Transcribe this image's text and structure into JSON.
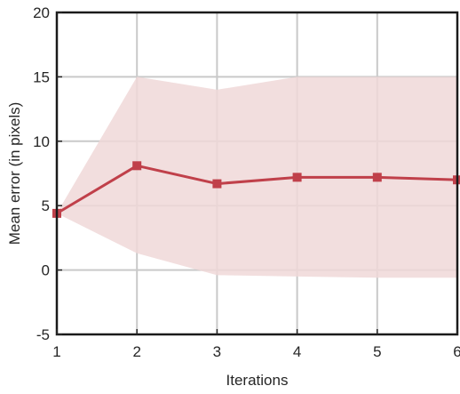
{
  "chart_data": {
    "type": "line",
    "title": "",
    "xlabel": "Iterations",
    "ylabel": "Mean error (in pixels)",
    "xlim": [
      1,
      6
    ],
    "ylim": [
      -5,
      20
    ],
    "x_ticks": [
      "1",
      "2",
      "3",
      "4",
      "5",
      "6"
    ],
    "y_ticks": [
      "-5",
      "0",
      "5",
      "10",
      "15",
      "20"
    ],
    "grid": true,
    "legend": "none",
    "x": [
      1,
      2,
      3,
      4,
      5,
      6
    ],
    "series": [
      {
        "values": [
          4.4,
          8.1,
          6.7,
          7.2,
          7.2,
          7.0
        ],
        "band_upper": [
          4.4,
          15.0,
          14.0,
          15.0,
          15.0,
          15.0
        ],
        "band_lower": [
          4.4,
          1.3,
          -0.4,
          -0.5,
          -0.6,
          -0.6
        ],
        "color": "#c0404a",
        "band_color": "#f0d8d8"
      }
    ]
  }
}
